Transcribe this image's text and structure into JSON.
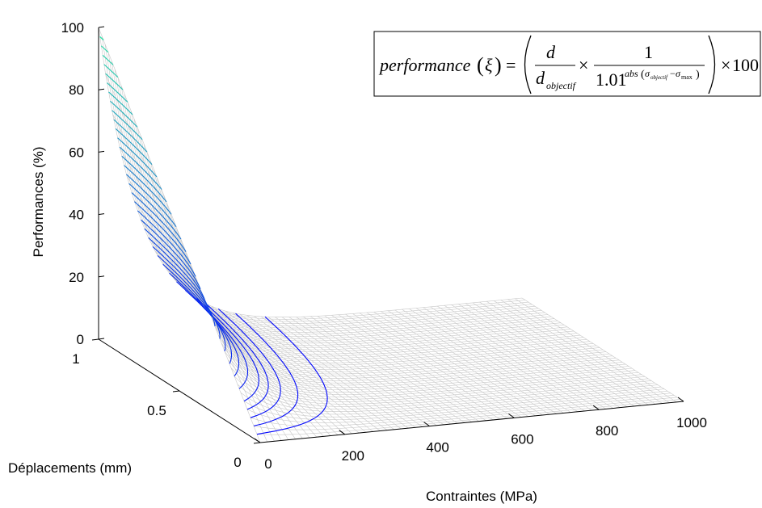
{
  "chart_data": {
    "type": "surface",
    "zlabel": "Performances (%)",
    "xlabel": "Contraintes (MPa)",
    "ylabel": "Déplacements (mm)",
    "zlim": [
      0,
      100
    ],
    "xlim": [
      0,
      1000
    ],
    "ylim": [
      0,
      1
    ],
    "z_ticks": [
      "0",
      "20",
      "40",
      "60",
      "80",
      "100"
    ],
    "x_ticks": [
      "0",
      "200",
      "400",
      "600",
      "800",
      "1000"
    ],
    "y_ticks": [
      "0",
      "0.5",
      "1"
    ],
    "grid": false,
    "surface": {
      "peak": {
        "x": 0,
        "y": 1,
        "z": 100
      },
      "formula": "performance = (d / d_objectif) × 1 / 1.01^abs(σ_objectif − σ_max) × 100",
      "sigma_objectif": 0,
      "d_objectif": 1,
      "contour_levels": [
        2,
        4,
        6,
        8,
        10,
        13,
        16,
        19,
        22,
        25,
        28,
        31,
        34,
        37,
        40,
        43,
        46,
        49,
        52,
        55,
        58,
        61,
        64,
        67,
        70,
        73,
        76,
        79,
        82,
        85,
        88,
        91,
        94,
        97
      ],
      "colormap": [
        "#0000ff",
        "#2ee6a6"
      ],
      "mesh_color": "#c8c8c8"
    },
    "legend_formula": {
      "lhs": "performance",
      "xi": "ξ",
      "d": "d",
      "d_obj_sub": "objectif",
      "times": "×",
      "one": "1",
      "base": "1.01",
      "exp_abs": "abs",
      "sig_obj": "σ",
      "sig_obj_sub": "objectif",
      "sig_max": "σ",
      "sig_max_sub": "max",
      "hundred": "100",
      "eq": "="
    }
  }
}
